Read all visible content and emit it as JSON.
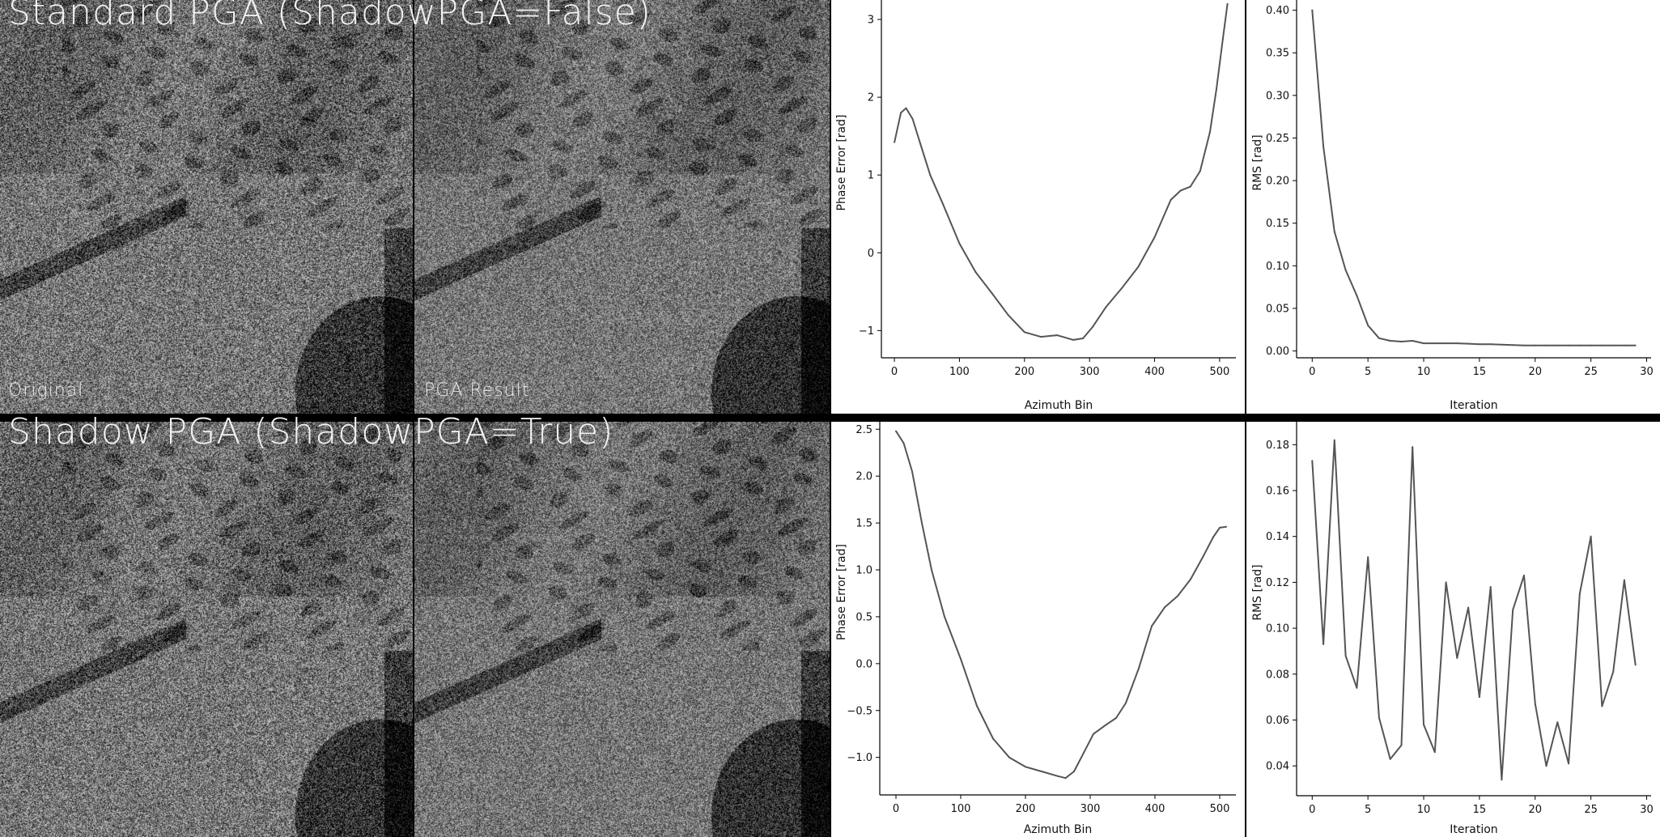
{
  "sections": [
    {
      "title": "Standard PGA (ShadowPGA=False)",
      "images": [
        {
          "label": "Original"
        },
        {
          "label": "PGA Result"
        }
      ]
    },
    {
      "title": "Shadow PGA (ShadowPGA=True)",
      "images": [
        {
          "label": ""
        },
        {
          "label": ""
        }
      ]
    }
  ],
  "colors": {
    "line": "#555555",
    "axis": "#000000",
    "divider": "#000000"
  },
  "chart_data": [
    {
      "type": "line",
      "xlabel": "Azimuth Bin",
      "ylabel": "Phase Error [rad]",
      "xlim": [
        -20,
        525
      ],
      "ylim": [
        -1.35,
        3.25
      ],
      "xticks": [
        0,
        100,
        200,
        300,
        400,
        500
      ],
      "yticks": [
        -1,
        0,
        1,
        2,
        3
      ],
      "x": [
        0,
        10,
        18,
        28,
        40,
        55,
        75,
        100,
        125,
        150,
        175,
        200,
        225,
        250,
        275,
        290,
        305,
        325,
        350,
        375,
        400,
        425,
        440,
        455,
        470,
        485,
        495,
        505,
        512
      ],
      "y": [
        1.42,
        1.8,
        1.86,
        1.72,
        1.4,
        1.0,
        0.62,
        0.12,
        -0.25,
        -0.52,
        -0.8,
        -1.02,
        -1.08,
        -1.06,
        -1.12,
        -1.1,
        -0.95,
        -0.7,
        -0.45,
        -0.18,
        0.2,
        0.68,
        0.8,
        0.85,
        1.05,
        1.55,
        2.1,
        2.75,
        3.2
      ]
    },
    {
      "type": "line",
      "xlabel": "Iteration",
      "ylabel": "RMS [rad]",
      "xlim": [
        -1.4,
        30.4
      ],
      "ylim": [
        -0.008,
        0.412
      ],
      "xticks": [
        0,
        5,
        10,
        15,
        20,
        25,
        30
      ],
      "yticks": [
        0.0,
        0.05,
        0.1,
        0.15,
        0.2,
        0.25,
        0.3,
        0.35,
        0.4
      ],
      "x": [
        0,
        1,
        2,
        3,
        4,
        5,
        6,
        7,
        8,
        9,
        10,
        11,
        12,
        13,
        14,
        15,
        16,
        17,
        18,
        19,
        20,
        21,
        22,
        23,
        24,
        25,
        26,
        27,
        28,
        29
      ],
      "y": [
        0.4,
        0.24,
        0.14,
        0.095,
        0.065,
        0.03,
        0.015,
        0.012,
        0.011,
        0.012,
        0.009,
        0.009,
        0.009,
        0.009,
        0.0085,
        0.008,
        0.008,
        0.0075,
        0.007,
        0.0065,
        0.0065,
        0.0065,
        0.0065,
        0.0065,
        0.0065,
        0.0065,
        0.0065,
        0.0065,
        0.0065,
        0.0065
      ]
    },
    {
      "type": "line",
      "xlabel": "Azimuth Bin",
      "ylabel": "Phase Error [rad]",
      "xlim": [
        -25,
        525
      ],
      "ylim": [
        -1.4,
        2.58
      ],
      "xticks": [
        0,
        100,
        200,
        300,
        400,
        500
      ],
      "yticks": [
        -1.0,
        -0.5,
        0.0,
        0.5,
        1.0,
        1.5,
        2.0,
        2.5
      ],
      "x": [
        0,
        12,
        25,
        40,
        55,
        75,
        100,
        125,
        150,
        175,
        200,
        225,
        250,
        262,
        275,
        290,
        305,
        325,
        340,
        355,
        375,
        395,
        415,
        435,
        455,
        475,
        490,
        500,
        510
      ],
      "y": [
        2.48,
        2.35,
        2.05,
        1.5,
        1.0,
        0.5,
        0.05,
        -0.45,
        -0.8,
        -1.0,
        -1.1,
        -1.15,
        -1.2,
        -1.22,
        -1.15,
        -0.95,
        -0.75,
        -0.65,
        -0.58,
        -0.42,
        -0.05,
        0.4,
        0.6,
        0.72,
        0.9,
        1.15,
        1.35,
        1.45,
        1.46
      ]
    },
    {
      "type": "line",
      "xlabel": "Iteration",
      "ylabel": "RMS [rad]",
      "xlim": [
        -1.4,
        30.4
      ],
      "ylim": [
        0.027,
        0.19
      ],
      "xticks": [
        0,
        5,
        10,
        15,
        20,
        25,
        30
      ],
      "yticks": [
        0.04,
        0.06,
        0.08,
        0.1,
        0.12,
        0.14,
        0.16,
        0.18
      ],
      "x": [
        0,
        1,
        2,
        3,
        4,
        5,
        6,
        7,
        8,
        9,
        10,
        11,
        12,
        13,
        14,
        15,
        16,
        17,
        18,
        19,
        20,
        21,
        22,
        23,
        24,
        25,
        26,
        27,
        28,
        29
      ],
      "y": [
        0.173,
        0.093,
        0.182,
        0.088,
        0.074,
        0.131,
        0.061,
        0.043,
        0.049,
        0.179,
        0.058,
        0.046,
        0.12,
        0.087,
        0.109,
        0.07,
        0.118,
        0.034,
        0.108,
        0.123,
        0.067,
        0.04,
        0.059,
        0.041,
        0.115,
        0.14,
        0.066,
        0.081,
        0.121,
        0.084
      ]
    }
  ]
}
